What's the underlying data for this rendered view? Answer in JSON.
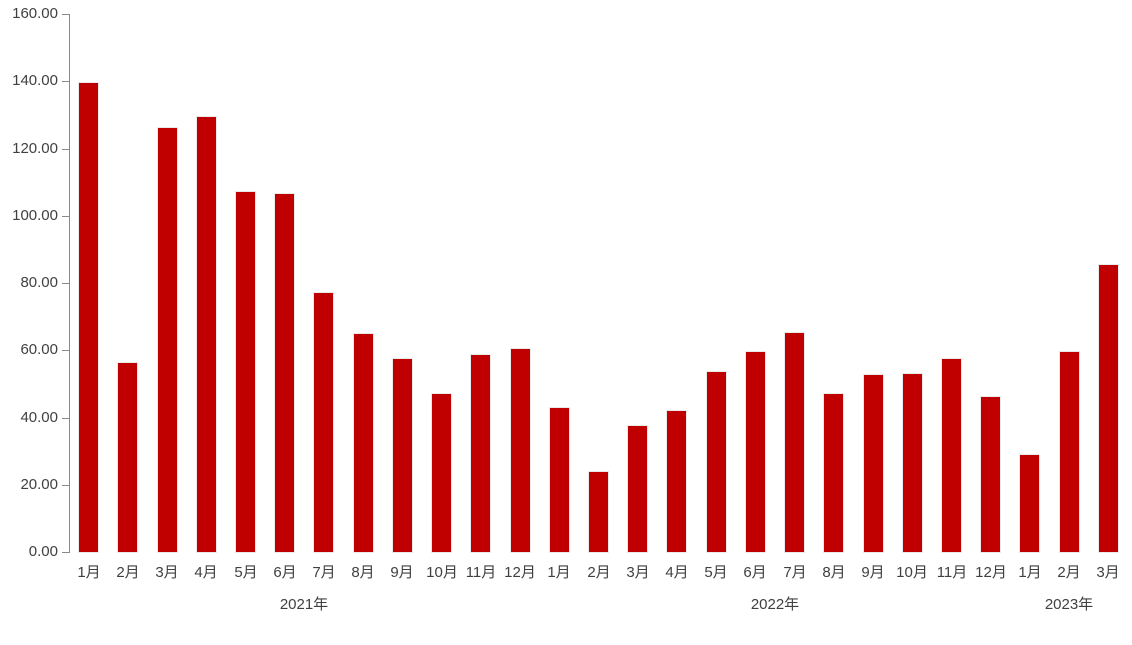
{
  "chart_data": {
    "type": "bar",
    "title": "",
    "xlabel": "",
    "ylabel": "",
    "categories": [
      "1月",
      "2月",
      "3月",
      "4月",
      "5月",
      "6月",
      "7月",
      "8月",
      "9月",
      "10月",
      "11月",
      "12月",
      "1月",
      "2月",
      "3月",
      "4月",
      "5月",
      "6月",
      "7月",
      "8月",
      "9月",
      "10月",
      "11月",
      "12月",
      "1月",
      "2月",
      "3月"
    ],
    "values": [
      139.5,
      56.1,
      126.0,
      129.5,
      107.0,
      106.6,
      76.9,
      64.8,
      57.4,
      46.9,
      58.5,
      60.4,
      42.8,
      23.9,
      37.5,
      42.0,
      53.5,
      59.4,
      65.0,
      46.9,
      52.5,
      53.0,
      57.4,
      46.1,
      28.9,
      59.6,
      85.4
    ],
    "year_groups": [
      {
        "label": "2021年",
        "start": 0,
        "count": 12
      },
      {
        "label": "2022年",
        "start": 12,
        "count": 12
      },
      {
        "label": "2023年",
        "start": 24,
        "count": 3
      }
    ],
    "ylim": [
      0,
      160
    ],
    "ytick_step": 20,
    "ytick_labels": [
      "0.00",
      "20.00",
      "40.00",
      "60.00",
      "80.00",
      "100.00",
      "120.00",
      "140.00",
      "160.00"
    ],
    "grid": "off",
    "legend": "none",
    "bar_color": "#C00000",
    "axis_color": "#898989",
    "text_color": "#404040"
  }
}
